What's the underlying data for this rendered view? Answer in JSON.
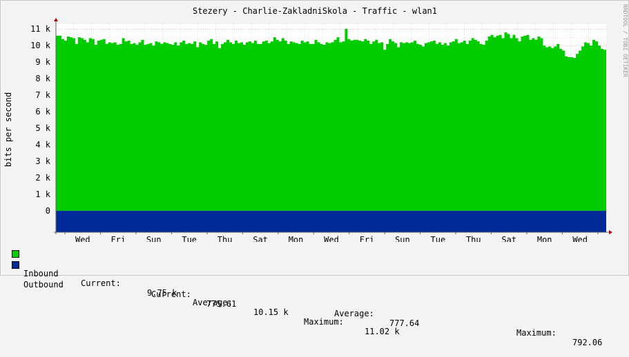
{
  "title": "Stezery - Charlie-ZakladniSkola - Traffic - wlan1",
  "watermark": "RRDTOOL / TOBI OETIKER",
  "colors": {
    "inbound": "#00cc00",
    "outbound": "#002a97",
    "grid_major": "#ff0000",
    "grid_minor": "#c0c0c0",
    "background": "#ffffff",
    "canvas": "#f3f3f3"
  },
  "chart_data": {
    "type": "area",
    "ylabel": "bits per second",
    "ylim": [
      -1300,
      11300
    ],
    "y_ticks": [
      {
        "value": 0,
        "label": "0"
      },
      {
        "value": 1000,
        "label": "1 k"
      },
      {
        "value": 2000,
        "label": "2 k"
      },
      {
        "value": 3000,
        "label": "3 k"
      },
      {
        "value": 4000,
        "label": "4 k"
      },
      {
        "value": 5000,
        "label": "5 k"
      },
      {
        "value": 6000,
        "label": "6 k"
      },
      {
        "value": 7000,
        "label": "7 k"
      },
      {
        "value": 8000,
        "label": "8 k"
      },
      {
        "value": 9000,
        "label": "9 k"
      },
      {
        "value": 10000,
        "label": "10 k"
      },
      {
        "value": 11000,
        "label": "11 k"
      }
    ],
    "x_days": 15.8,
    "x_labels": [
      {
        "label": "Wed",
        "day": 0.77
      },
      {
        "label": "Fri",
        "day": 1.79
      },
      {
        "label": "Sun",
        "day": 2.81
      },
      {
        "label": "Tue",
        "day": 3.83
      },
      {
        "label": "Thu",
        "day": 4.85
      },
      {
        "label": "Sat",
        "day": 5.87
      },
      {
        "label": "Mon",
        "day": 6.89
      },
      {
        "label": "Wed",
        "day": 7.91
      },
      {
        "label": "Fri",
        "day": 8.93
      },
      {
        "label": "Sun",
        "day": 9.95
      },
      {
        "label": "Tue",
        "day": 10.97
      },
      {
        "label": "Thu",
        "day": 11.99
      },
      {
        "label": "Sat",
        "day": 13.01
      },
      {
        "label": "Mon",
        "day": 14.03
      },
      {
        "label": "Wed",
        "day": 15.05
      }
    ],
    "series": [
      {
        "name": "Inbound",
        "values": [
          10600,
          10600,
          10400,
          10300,
          10550,
          10500,
          10450,
          10100,
          10500,
          10450,
          10350,
          10200,
          10450,
          10400,
          10050,
          10300,
          10350,
          10400,
          10100,
          10200,
          10150,
          10200,
          10050,
          10100,
          10450,
          10250,
          10300,
          10100,
          10150,
          10050,
          10200,
          10350,
          10050,
          10100,
          10150,
          10000,
          10250,
          10200,
          10100,
          10200,
          10150,
          10100,
          10050,
          10200,
          10000,
          10200,
          10300,
          10100,
          10150,
          10100,
          10250,
          9900,
          10200,
          10100,
          10050,
          10300,
          10400,
          10100,
          10250,
          9850,
          10100,
          10200,
          10350,
          10200,
          10100,
          10300,
          10150,
          10200,
          10050,
          10200,
          10250,
          10150,
          10300,
          10100,
          10100,
          10250,
          10300,
          10150,
          10250,
          10500,
          10350,
          10250,
          10450,
          10300,
          10100,
          10250,
          10200,
          10150,
          10100,
          10300,
          10200,
          10250,
          10100,
          10100,
          10350,
          10200,
          10100,
          10050,
          10200,
          10150,
          10200,
          10350,
          10500,
          10200,
          10250,
          11020,
          10400,
          10300,
          10350,
          10350,
          10300,
          10250,
          10400,
          10300,
          10100,
          10250,
          10350,
          10150,
          10200,
          9750,
          10100,
          10400,
          10250,
          10150,
          9900,
          10200,
          10150,
          10200,
          10150,
          10200,
          10300,
          10100,
          10050,
          9950,
          10150,
          10200,
          10250,
          10300,
          10100,
          10200,
          10050,
          10150,
          10000,
          10200,
          10250,
          10400,
          10150,
          10200,
          10300,
          10100,
          10300,
          10450,
          10350,
          10250,
          10100,
          10050,
          10300,
          10550,
          10650,
          10500,
          10600,
          10650,
          10450,
          10800,
          10700,
          10450,
          10650,
          10450,
          10250,
          10550,
          10600,
          10650,
          10350,
          10450,
          10350,
          10550,
          10450,
          10000,
          9900,
          9950,
          9850,
          9950,
          10100,
          9800,
          9700,
          9350,
          9300,
          9300,
          9250,
          9500,
          9700,
          9950,
          10200,
          10150,
          10000,
          10350,
          10250,
          10000,
          9800,
          9750
        ],
        "current": "9.75 k",
        "average": "10.15 k",
        "maximum": "11.02 k"
      },
      {
        "name": "Outbound",
        "values": [
          775.61
        ],
        "current": "775.61",
        "average": "777.64",
        "maximum": "792.06"
      }
    ]
  },
  "legend": {
    "inbound_label": "Inbound",
    "outbound_label": "Outbound",
    "current_label": "Current:",
    "average_label": "Average:",
    "maximum_label": "Maximum:"
  }
}
